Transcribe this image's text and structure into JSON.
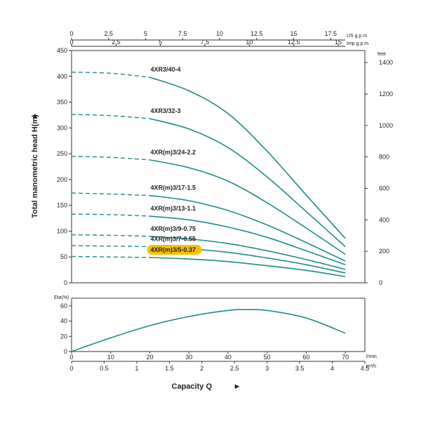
{
  "chart_data": [
    {
      "type": "line",
      "ylabel": "Total manometric head H(m)",
      "ylim": [
        0,
        450
      ],
      "yticks": [
        0,
        50,
        100,
        150,
        200,
        250,
        300,
        350,
        400,
        450
      ],
      "right_axis": {
        "unit": "feet",
        "ticks": [
          0,
          200,
          400,
          600,
          800,
          1000,
          1200,
          1400
        ]
      },
      "top_axes": [
        {
          "unit": "US g.p.m",
          "ticks": [
            0,
            2.5,
            5,
            7.5,
            10,
            12.5,
            15,
            17.5
          ]
        },
        {
          "unit": "Imp g.p.m",
          "ticks": [
            0,
            2.5,
            5,
            7.5,
            10,
            12.5,
            15
          ]
        }
      ],
      "xlim": [
        0,
        75
      ],
      "grid": false,
      "series_color": "#1e8a8a",
      "highlight_color": "#f6c200",
      "series": [
        {
          "name": "4XR3/40-4",
          "x": [
            0,
            10,
            20,
            30,
            40,
            50,
            60,
            70
          ],
          "y": [
            408,
            406,
            398,
            372,
            328,
            255,
            170,
            86
          ],
          "highlight": false
        },
        {
          "name": "4XR3/32-3",
          "x": [
            0,
            10,
            20,
            30,
            40,
            50,
            60,
            70
          ],
          "y": [
            326,
            324,
            318,
            298,
            262,
            205,
            138,
            70
          ],
          "highlight": false
        },
        {
          "name": "4XR(m)3/24-2.2",
          "x": [
            0,
            10,
            20,
            30,
            40,
            50,
            60,
            70
          ],
          "y": [
            245,
            243,
            238,
            223,
            197,
            155,
            106,
            55
          ],
          "highlight": false
        },
        {
          "name": "4XR(m)3/17-1.5",
          "x": [
            0,
            10,
            20,
            30,
            40,
            50,
            60,
            70
          ],
          "y": [
            174,
            172,
            169,
            159,
            140,
            112,
            78,
            42
          ],
          "highlight": false
        },
        {
          "name": "4XR(m)3/13-1.1",
          "x": [
            0,
            10,
            20,
            30,
            40,
            50,
            60,
            70
          ],
          "y": [
            133,
            132,
            129,
            122,
            108,
            88,
            62,
            35
          ],
          "highlight": false
        },
        {
          "name": "4XR(m)3/9-0.75",
          "x": [
            0,
            10,
            20,
            30,
            40,
            50,
            60,
            70
          ],
          "y": [
            93,
            92,
            90,
            85,
            76,
            62,
            45,
            26
          ],
          "highlight": false
        },
        {
          "name": "4XR(m)3/7-0.55",
          "x": [
            0,
            10,
            20,
            30,
            40,
            50,
            60,
            70
          ],
          "y": [
            72,
            71,
            70,
            66,
            59,
            48,
            35,
            19
          ],
          "highlight": false
        },
        {
          "name": "4XR(m)3/5-0.37",
          "x": [
            0,
            10,
            20,
            30,
            40,
            50,
            60,
            70
          ],
          "y": [
            51,
            50,
            49,
            46,
            41,
            33,
            24,
            12
          ],
          "highlight": true
        }
      ]
    },
    {
      "type": "line",
      "ylabel": "Eta(%)",
      "ylim": [
        0,
        70
      ],
      "yticks": [
        0,
        20,
        40,
        60
      ],
      "xlabel": "Capacity Q",
      "xlim": [
        0,
        75
      ],
      "xticks": [
        0,
        10,
        20,
        30,
        40,
        50,
        60,
        70
      ],
      "x_unit": "l/min",
      "secondary_x": {
        "unit": "m³/h",
        "ticks": [
          0,
          0.5,
          1,
          1.5,
          2,
          2.5,
          3,
          3.5,
          4,
          4.5
        ]
      },
      "series": [
        {
          "x": [
            0,
            10,
            20,
            30,
            40,
            45,
            50,
            60,
            70
          ],
          "y": [
            0,
            18,
            34,
            46,
            54,
            55,
            54,
            44,
            24
          ]
        }
      ]
    }
  ]
}
